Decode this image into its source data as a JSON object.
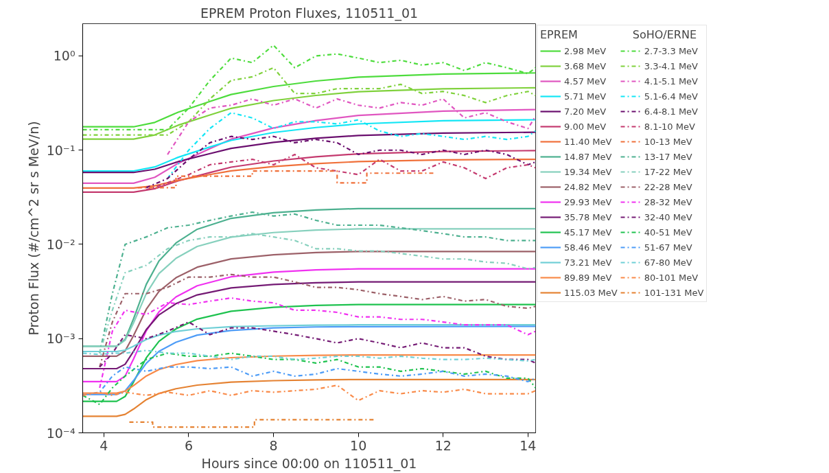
{
  "chart_data": {
    "type": "line",
    "title": "EPREM Proton Fluxes, 110511_01",
    "xlabel": "Hours since 00:00 on 110511_01",
    "ylabel": "Proton Flux (#/cm^2 sr s MeV/n)",
    "legend_title": [
      "EPREM",
      "SoHO/ERNE"
    ],
    "legend": "right",
    "log": "y",
    "xlim": [
      3.5,
      14.18
    ],
    "xticks": [
      4,
      6,
      8,
      10,
      12,
      14
    ],
    "ylim": [
      0.0001,
      2.2
    ],
    "yticks": [
      {
        "value": 0.0001,
        "label": "10⁻⁴"
      },
      {
        "value": 0.001,
        "label": "10⁻³"
      },
      {
        "value": 0.01,
        "label": "10⁻²"
      },
      {
        "value": 0.1,
        "label": "10⁻¹"
      },
      {
        "value": 1,
        "label": "10⁰"
      }
    ],
    "series": [
      {
        "name": "2.98 MeV",
        "line_style": "solid",
        "color": "#4ddc3c",
        "x": [
          3.5,
          4.7,
          5.2,
          5.75,
          6.5,
          7,
          8,
          9,
          10,
          12,
          14.18
        ],
        "values": [
          0.177,
          0.177,
          0.197,
          0.253,
          0.329,
          0.39,
          0.474,
          0.542,
          0.595,
          0.642,
          0.66
        ]
      },
      {
        "name": "3.68 MeV",
        "line_style": "solid",
        "color": "#7fd13b",
        "x": [
          3.5,
          4.7,
          5.2,
          5.75,
          6.5,
          7,
          8,
          9,
          10,
          12,
          14.18
        ],
        "values": [
          0.131,
          0.131,
          0.145,
          0.184,
          0.236,
          0.278,
          0.336,
          0.381,
          0.417,
          0.448,
          0.46
        ]
      },
      {
        "name": "4.57 MeV",
        "line_style": "solid",
        "color": "#e055c0",
        "x": [
          3.5,
          4.7,
          5.2,
          5.75,
          6.5,
          7,
          8,
          9,
          10,
          12,
          14.18
        ],
        "values": [
          0.0446,
          0.0446,
          0.0515,
          0.0725,
          0.104,
          0.131,
          0.172,
          0.206,
          0.234,
          0.26,
          0.27
        ]
      },
      {
        "name": "5.71 MeV",
        "line_style": "solid",
        "color": "#12e6f5",
        "x": [
          3.5,
          4.7,
          5.2,
          5.75,
          6.5,
          7,
          8,
          9,
          10,
          12,
          14.18
        ],
        "values": [
          0.06,
          0.06,
          0.0664,
          0.084,
          0.108,
          0.127,
          0.154,
          0.174,
          0.19,
          0.205,
          0.21
        ]
      },
      {
        "name": "7.20 MeV",
        "line_style": "solid",
        "color": "#6a0e6e",
        "x": [
          3.5,
          4.7,
          5.2,
          5.75,
          6.5,
          7,
          8,
          9,
          10,
          12,
          14.18
        ],
        "values": [
          0.058,
          0.058,
          0.0628,
          0.0756,
          0.092,
          0.1046,
          0.121,
          0.134,
          0.143,
          0.152,
          0.155
        ]
      },
      {
        "name": "9.00 MeV",
        "line_style": "solid",
        "color": "#c4396e",
        "x": [
          3.5,
          4.7,
          5.2,
          5.75,
          6.5,
          7,
          8,
          9,
          10,
          12,
          14.18
        ],
        "values": [
          0.0359,
          0.0359,
          0.039,
          0.0472,
          0.0578,
          0.066,
          0.0768,
          0.0851,
          0.0914,
          0.0969,
          0.099
        ]
      },
      {
        "name": "11.40 MeV",
        "line_style": "solid",
        "color": "#f0703a",
        "x": [
          3.5,
          4.7,
          5.2,
          5.75,
          6.5,
          7,
          8,
          9,
          10,
          12,
          14.18
        ],
        "values": [
          0.0396,
          0.0396,
          0.0419,
          0.0479,
          0.0551,
          0.0604,
          0.0671,
          0.072,
          0.0756,
          0.0789,
          0.08
        ]
      },
      {
        "name": "14.87 MeV",
        "line_style": "solid",
        "color": "#4cb08f",
        "x": [
          3.5,
          4.3,
          4.5,
          4.7,
          5.0,
          5.3,
          5.7,
          6.2,
          7,
          8,
          9,
          10,
          14.18
        ],
        "values": [
          0.00083,
          0.00083,
          0.00098,
          0.00163,
          0.00377,
          0.00668,
          0.01035,
          0.01448,
          0.0189,
          0.0217,
          0.0232,
          0.024,
          0.024
        ]
      },
      {
        "name": "19.34 MeV",
        "line_style": "solid",
        "color": "#86d0bd",
        "x": [
          3.5,
          4.3,
          4.5,
          4.7,
          5.0,
          5.3,
          5.7,
          6.2,
          7,
          8,
          9,
          10,
          14.18
        ],
        "values": [
          0.00083,
          0.00083,
          0.00096,
          0.00147,
          0.00301,
          0.00491,
          0.00712,
          0.0095,
          0.01195,
          0.01336,
          0.0142,
          0.0146,
          0.0146
        ]
      },
      {
        "name": "24.82 MeV",
        "line_style": "solid",
        "color": "#9c6068",
        "x": [
          3.5,
          4.3,
          4.5,
          4.7,
          5.0,
          5.3,
          5.7,
          6.2,
          7,
          8,
          9,
          10,
          14.18
        ],
        "values": [
          0.00065,
          0.00065,
          0.00074,
          0.00108,
          0.00205,
          0.00318,
          0.00443,
          0.00573,
          0.00702,
          0.00777,
          0.00819,
          0.0084,
          0.0084
        ]
      },
      {
        "name": "29.93 MeV",
        "line_style": "solid",
        "color": "#f030f0",
        "x": [
          3.5,
          4.3,
          4.5,
          4.7,
          5.0,
          5.3,
          5.7,
          6.2,
          7,
          8,
          9,
          10,
          14.18
        ],
        "values": [
          0.00035,
          0.00035,
          0.0004,
          0.00061,
          0.00121,
          0.00193,
          0.00277,
          0.00364,
          0.00453,
          0.00508,
          0.00536,
          0.0055,
          0.0055
        ]
      },
      {
        "name": "35.78 MeV",
        "line_style": "solid",
        "color": "#741a74",
        "x": [
          3.5,
          4.3,
          4.5,
          4.7,
          5.0,
          5.3,
          5.7,
          6.2,
          7,
          8,
          9,
          10,
          14.18
        ],
        "values": [
          0.00048,
          0.00048,
          0.000534,
          0.000734,
          0.00125,
          0.00179,
          0.00235,
          0.00291,
          0.00345,
          0.00375,
          0.00392,
          0.004,
          0.004
        ]
      },
      {
        "name": "45.17 MeV",
        "line_style": "solid",
        "color": "#1ec24f",
        "x": [
          3.5,
          4.3,
          4.5,
          4.7,
          5.0,
          5.3,
          5.7,
          6.2,
          7,
          8,
          9,
          10,
          14.18
        ],
        "values": [
          0.000216,
          0.000216,
          0.000243,
          0.000347,
          0.000626,
          0.000937,
          0.00127,
          0.00161,
          0.00195,
          0.00215,
          0.00225,
          0.0023,
          0.0023
        ]
      },
      {
        "name": "58.46 MeV",
        "line_style": "solid",
        "color": "#4d9cf7",
        "x": [
          3.5,
          4.3,
          4.5,
          4.7,
          5.0,
          5.3,
          5.7,
          6.2,
          7,
          8,
          9,
          10,
          14.18
        ],
        "values": [
          0.000255,
          0.000255,
          0.000278,
          0.000359,
          0.000548,
          0.000734,
          0.000915,
          0.00109,
          0.00122,
          0.0013,
          0.00133,
          0.00134,
          0.00135
        ]
      },
      {
        "name": "73.21 MeV",
        "line_style": "solid",
        "color": "#6fcfd6",
        "x": [
          3.5,
          4.3,
          4.5,
          4.7,
          5.0,
          5.3,
          5.7,
          6.2,
          7,
          8,
          9,
          10,
          14.18
        ],
        "values": [
          0.00073,
          0.00073,
          0.000754,
          0.000831,
          0.000978,
          0.00109,
          0.00119,
          0.00127,
          0.00134,
          0.00137,
          0.00139,
          0.0014,
          0.0014
        ]
      },
      {
        "name": "89.89 MeV",
        "line_style": "solid",
        "color": "#f98a48",
        "x": [
          3.5,
          4.3,
          4.5,
          4.7,
          5.0,
          5.3,
          5.7,
          6.2,
          7,
          8,
          9,
          10,
          14.18
        ],
        "values": [
          0.000264,
          0.000264,
          0.000277,
          0.000318,
          0.000401,
          0.00047,
          0.000531,
          0.000583,
          0.000628,
          0.000652,
          0.000665,
          0.00067,
          0.00067
        ]
      },
      {
        "name": "115.03 MeV",
        "line_style": "solid",
        "color": "#e58232",
        "x": [
          3.5,
          4.3,
          4.5,
          4.7,
          5.0,
          5.3,
          5.7,
          6.2,
          7,
          8,
          9,
          10,
          14.18
        ],
        "values": [
          0.00015,
          0.00015,
          0.000157,
          0.000179,
          0.000225,
          0.000262,
          0.000294,
          0.000321,
          0.000345,
          0.000358,
          0.000365,
          0.000368,
          0.000368
        ]
      },
      {
        "name": "2.7-3.3 MeV",
        "line_style": "dashdot",
        "color": "#4ddc3c",
        "x": [
          3.5,
          3.9,
          4.2,
          4.5,
          5,
          5.5,
          6,
          6.5,
          7,
          7.5,
          8,
          8.5,
          9,
          9.5,
          10,
          10.5,
          11,
          11.5,
          12,
          12.5,
          13,
          13.5,
          14,
          14.18
        ],
        "values": [
          0.165,
          0.165,
          0.165,
          0.165,
          0.165,
          0.165,
          0.28,
          0.55,
          0.95,
          0.85,
          1.3,
          0.75,
          1.0,
          1.05,
          0.95,
          0.85,
          0.9,
          0.8,
          0.85,
          0.7,
          0.85,
          0.75,
          0.65,
          0.75
        ]
      },
      {
        "name": "3.3-4.1 MeV",
        "line_style": "dashdot",
        "color": "#7fd13b",
        "x": [
          3.5,
          3.9,
          4.2,
          4.5,
          5,
          5.5,
          6,
          6.5,
          7,
          7.5,
          8,
          8.5,
          9,
          9.5,
          10,
          10.5,
          11,
          11.5,
          12,
          12.5,
          13,
          13.5,
          14,
          14.18
        ],
        "values": [
          0.145,
          0.145,
          0.145,
          0.145,
          0.145,
          0.145,
          0.2,
          0.35,
          0.55,
          0.6,
          0.75,
          0.4,
          0.4,
          0.45,
          0.45,
          0.45,
          0.5,
          0.4,
          0.42,
          0.38,
          0.32,
          0.38,
          0.42,
          0.38
        ]
      },
      {
        "name": "4.1-5.1 MeV",
        "line_style": "dashdot",
        "color": "#e055c0",
        "x": [
          5.5,
          6,
          6.5,
          7,
          7.5,
          8,
          8.5,
          9,
          9.5,
          10,
          10.5,
          11,
          11.5,
          12,
          12.5,
          13,
          13.5,
          14,
          14.18
        ],
        "values": [
          0.09,
          0.2,
          0.28,
          0.3,
          0.35,
          0.3,
          0.35,
          0.28,
          0.35,
          0.3,
          0.28,
          0.32,
          0.3,
          0.35,
          0.22,
          0.25,
          0.2,
          0.17,
          0.23
        ]
      },
      {
        "name": "5.1-6.4 MeV",
        "line_style": "dashdot",
        "color": "#12e6f5",
        "x": [
          5.5,
          6,
          6.5,
          7,
          7.5,
          8,
          8.5,
          9,
          9.5,
          10,
          10.5,
          11,
          11.5,
          12,
          12.5,
          13,
          13.5,
          14,
          14.18
        ],
        "values": [
          0.05,
          0.1,
          0.17,
          0.25,
          0.22,
          0.17,
          0.2,
          0.2,
          0.19,
          0.21,
          0.16,
          0.14,
          0.15,
          0.14,
          0.13,
          0.14,
          0.13,
          0.14,
          0.16
        ]
      },
      {
        "name": "6.4-8.1 MeV",
        "line_style": "dashdot",
        "color": "#6a0e6e",
        "x": [
          5,
          5.5,
          6,
          6.5,
          7,
          7.5,
          8,
          8.5,
          9,
          9.5,
          10,
          10.5,
          11,
          11.5,
          12,
          12.5,
          13,
          13.5,
          14,
          14.18
        ],
        "values": [
          0.04,
          0.05,
          0.08,
          0.12,
          0.14,
          0.13,
          0.14,
          0.12,
          0.13,
          0.12,
          0.09,
          0.1,
          0.1,
          0.09,
          0.1,
          0.09,
          0.1,
          0.09,
          0.07,
          0.075
        ]
      },
      {
        "name": "8.1-10 MeV",
        "line_style": "dashdot",
        "color": "#c4396e",
        "x": [
          5,
          5.5,
          6,
          6.5,
          7,
          7.5,
          8,
          8.5,
          9,
          9.5,
          10,
          10.5,
          11,
          11.5,
          12,
          12.5,
          13,
          13.5,
          14,
          14.18
        ],
        "values": [
          0.038,
          0.045,
          0.055,
          0.07,
          0.075,
          0.08,
          0.07,
          0.09,
          0.065,
          0.06,
          0.055,
          0.08,
          0.06,
          0.06,
          0.075,
          0.065,
          0.05,
          0.065,
          0.07,
          0.065
        ]
      },
      {
        "name": "10-13 MeV",
        "line_style": "dashdot",
        "color": "#f0703a",
        "x": [
          4.8,
          5.7,
          5.7,
          7.5,
          7.5,
          9.5,
          9.5,
          10.2,
          10.2,
          11.8
        ],
        "values": [
          0.04,
          0.04,
          0.053,
          0.053,
          0.06,
          0.06,
          0.045,
          0.045,
          0.057,
          0.057
        ]
      },
      {
        "name": "13-17 MeV",
        "line_style": "dashdot",
        "color": "#4cb08f",
        "x": [
          3.9,
          4.2,
          4.5,
          5,
          5.5,
          6,
          6.5,
          7,
          7.5,
          8,
          8.5,
          9,
          9.5,
          10,
          10.5,
          11,
          11.5,
          12,
          12.5,
          13,
          13.5,
          14,
          14.18
        ],
        "values": [
          0.0007,
          0.003,
          0.01,
          0.012,
          0.015,
          0.016,
          0.018,
          0.02,
          0.022,
          0.02,
          0.021,
          0.018,
          0.016,
          0.016,
          0.016,
          0.015,
          0.014,
          0.013,
          0.012,
          0.012,
          0.011,
          0.011,
          0.011
        ]
      },
      {
        "name": "17-22 MeV",
        "line_style": "dashdot",
        "color": "#86d0bd",
        "x": [
          3.9,
          4.2,
          4.5,
          5,
          5.5,
          6,
          6.5,
          7,
          7.5,
          8,
          8.5,
          9,
          9.5,
          10,
          10.5,
          11,
          11.5,
          12,
          12.5,
          13,
          13.5,
          14,
          14.18
        ],
        "values": [
          0.0007,
          0.002,
          0.005,
          0.006,
          0.009,
          0.011,
          0.012,
          0.012,
          0.013,
          0.012,
          0.011,
          0.009,
          0.009,
          0.0085,
          0.0085,
          0.008,
          0.0075,
          0.007,
          0.007,
          0.0065,
          0.0063,
          0.0055,
          0.0057
        ]
      },
      {
        "name": "22-28 MeV",
        "line_style": "dashdot",
        "color": "#9c6068",
        "x": [
          3.9,
          4.2,
          4.5,
          5,
          5.5,
          6,
          6.5,
          7,
          7.5,
          8,
          8.5,
          9,
          9.5,
          10,
          10.5,
          11,
          11.5,
          12,
          12.5,
          13,
          13.5,
          14,
          14.18
        ],
        "values": [
          0.0005,
          0.0015,
          0.003,
          0.003,
          0.0035,
          0.0045,
          0.0045,
          0.0048,
          0.0045,
          0.0045,
          0.004,
          0.0035,
          0.0035,
          0.0033,
          0.003,
          0.0028,
          0.0026,
          0.0028,
          0.0025,
          0.0026,
          0.0022,
          0.0021,
          0.0022
        ]
      },
      {
        "name": "28-32 MeV",
        "line_style": "dashdot",
        "color": "#f030f0",
        "x": [
          3.9,
          4.2,
          4.5,
          5,
          5.5,
          6,
          6.5,
          7,
          7.5,
          8,
          8.5,
          9,
          9.5,
          10,
          10.5,
          11,
          11.5,
          12,
          12.5,
          13,
          13.5,
          14,
          14.18
        ],
        "values": [
          0.0003,
          0.0012,
          0.002,
          0.0018,
          0.0024,
          0.0023,
          0.0025,
          0.0027,
          0.0025,
          0.0024,
          0.002,
          0.002,
          0.0019,
          0.0017,
          0.0017,
          0.0016,
          0.0016,
          0.0015,
          0.0014,
          0.0014,
          0.0014,
          0.0011,
          0.0012
        ]
      },
      {
        "name": "32-40 MeV",
        "line_style": "dashdot",
        "color": "#741a74",
        "x": [
          3.9,
          4.2,
          4.5,
          5,
          5.5,
          6,
          6.5,
          7,
          7.5,
          8,
          8.5,
          9,
          9.5,
          10,
          10.5,
          11,
          11.5,
          12,
          12.5,
          13,
          13.5,
          14,
          14.18
        ],
        "values": [
          0.0005,
          0.0007,
          0.0011,
          0.001,
          0.0012,
          0.0015,
          0.0011,
          0.0013,
          0.0013,
          0.0012,
          0.0011,
          0.001,
          0.0009,
          0.001,
          0.0009,
          0.0008,
          0.0009,
          0.0008,
          0.0008,
          0.00065,
          0.0006,
          0.0006,
          0.00055
        ]
      },
      {
        "name": "40-51 MeV",
        "line_style": "dashdot",
        "color": "#1ec24f",
        "x": [
          3.5,
          3.9,
          4.2,
          4.5,
          5,
          5.5,
          6,
          6.5,
          7,
          7.5,
          8,
          8.5,
          9,
          9.5,
          10,
          10.5,
          11,
          11.5,
          12,
          12.5,
          13,
          13.5,
          14,
          14.18
        ],
        "values": [
          0.00025,
          0.0002,
          0.0003,
          0.0004,
          0.0006,
          0.0007,
          0.00065,
          0.00065,
          0.0007,
          0.00065,
          0.0006,
          0.0006,
          0.00055,
          0.0006,
          0.0005,
          0.0005,
          0.00045,
          0.00048,
          0.00045,
          0.00042,
          0.00045,
          0.00038,
          0.00038,
          0.0003
        ]
      },
      {
        "name": "51-67 MeV",
        "line_style": "dashdot",
        "color": "#4d9cf7",
        "x": [
          3.5,
          3.9,
          4.2,
          4.5,
          5,
          5.5,
          6,
          6.5,
          7,
          7.5,
          8,
          8.5,
          9,
          9.5,
          10,
          10.5,
          11,
          11.5,
          12,
          12.5,
          13,
          13.5,
          14,
          14.18
        ],
        "values": [
          0.00025,
          0.00027,
          0.0004,
          0.0005,
          0.00045,
          0.0005,
          0.0005,
          0.00048,
          0.0005,
          0.0004,
          0.00045,
          0.0004,
          0.00042,
          0.00048,
          0.00045,
          0.00042,
          0.0004,
          0.00042,
          0.00045,
          0.0004,
          0.00042,
          0.0004,
          0.00035,
          0.00038
        ]
      },
      {
        "name": "67-80 MeV",
        "line_style": "dashdot",
        "color": "#6fcfd6",
        "x": [
          3.5,
          3.9,
          4.2,
          4.5,
          5,
          5.5,
          6,
          6.5,
          7,
          7.5,
          8,
          8.5,
          9,
          9.5,
          10,
          10.5,
          11,
          11.5,
          12,
          12.5,
          13,
          13.5,
          14,
          14.18
        ],
        "values": [
          0.0007,
          0.00068,
          0.0007,
          0.0007,
          0.00075,
          0.0007,
          0.0007,
          0.00065,
          0.0006,
          0.00065,
          0.00065,
          0.0006,
          0.00062,
          0.00065,
          0.00065,
          0.00062,
          0.00065,
          0.00062,
          0.0006,
          0.0006,
          0.00062,
          0.0006,
          0.00058,
          0.0006
        ]
      },
      {
        "name": "80-101 MeV",
        "line_style": "dashdot",
        "color": "#f98a48",
        "x": [
          3.5,
          3.9,
          4.2,
          4.5,
          5,
          5.5,
          6,
          6.5,
          7,
          7.5,
          8,
          8.5,
          9,
          9.5,
          10,
          10.5,
          11,
          11.5,
          12,
          12.5,
          13,
          13.5,
          14,
          14.18
        ],
        "values": [
          0.00025,
          0.00027,
          0.00025,
          0.00027,
          0.00025,
          0.00027,
          0.00025,
          0.00028,
          0.00025,
          0.00028,
          0.00027,
          0.00028,
          0.00029,
          0.00032,
          0.00022,
          0.00028,
          0.00026,
          0.00028,
          0.00027,
          0.00029,
          0.00026,
          0.00026,
          0.00026,
          0.00028
        ]
      },
      {
        "name": "101-131 MeV",
        "line_style": "dashdot",
        "color": "#e58232",
        "x": [
          4.6,
          5.15,
          5.15,
          7.55,
          7.55,
          10.4
        ],
        "values": [
          0.00013,
          0.00013,
          0.000115,
          0.000115,
          0.000138,
          0.000138
        ]
      }
    ]
  }
}
